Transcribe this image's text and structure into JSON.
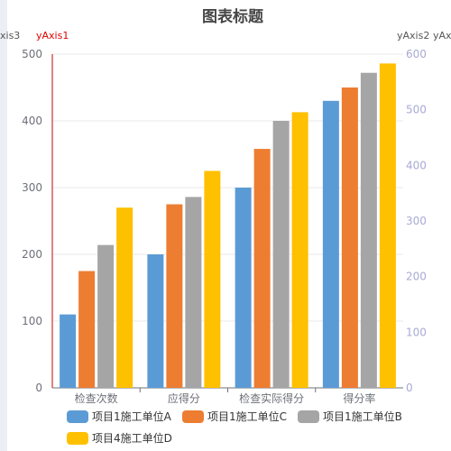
{
  "chart_data": {
    "type": "bar",
    "title": "图表标题",
    "categories": [
      "检查次数",
      "应得分",
      "检查实际得分",
      "得分率"
    ],
    "series": [
      {
        "name": "项目1施工单位A",
        "color": "#5b9bd5",
        "values": [
          110,
          200,
          300,
          430
        ]
      },
      {
        "name": "项目1施工单位C",
        "color": "#ed7d31",
        "values": [
          175,
          275,
          358,
          450
        ]
      },
      {
        "name": "项目1施工单位B",
        "color": "#a5a5a5",
        "values": [
          214,
          286,
          400,
          472
        ]
      },
      {
        "name": "项目4施工单位D",
        "color": "#ffc000",
        "values": [
          270,
          325,
          413,
          486
        ]
      }
    ],
    "y_axis_left": {
      "name": "yAxis1",
      "name_color": "#e00000",
      "min": 0,
      "max": 500,
      "ticks": [
        0,
        100,
        200,
        300,
        400,
        500
      ],
      "line_color": "#cc0000"
    },
    "y_axis_left_outer_name": "xis3",
    "y_axis_right": {
      "name": "yAxis2",
      "min": 0,
      "max": 600,
      "ticks": [
        0,
        100,
        200,
        300,
        400,
        500,
        600
      ],
      "label_color": "#a9a9d6"
    },
    "y_axis_right_outer_name": "yAx",
    "grid": true,
    "legend_position": "bottom"
  }
}
